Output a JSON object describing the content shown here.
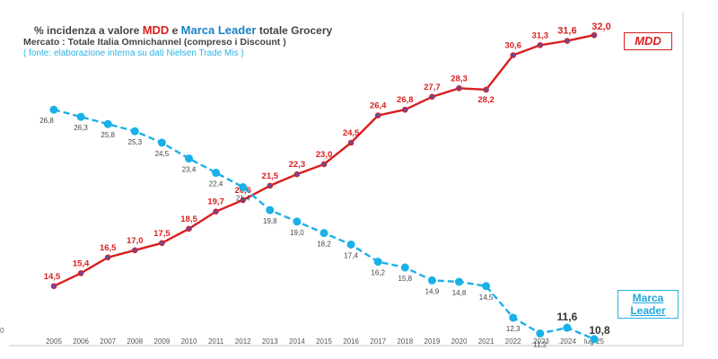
{
  "header": {
    "title_prefix": "% incidenza a valore ",
    "title_mdd": "MDD",
    "title_mid": " e ",
    "title_ml": "Marca Leader",
    "title_suffix": " totale Grocery",
    "subtitle": "Mercato : Totale Italia Omnichannel (compreso i Discount )",
    "source": "( fonte: elaborazione interna su dati  Nielsen Trade Mis )"
  },
  "legend": {
    "mdd": "MDD",
    "ml_line1": "Marca",
    "ml_line2": "Leader"
  },
  "y_zero_label": "0",
  "chart_data": {
    "type": "line",
    "categories": [
      "2005",
      "2006",
      "2007",
      "2008",
      "2009",
      "2010",
      "2011",
      "2012",
      "2013",
      "2014",
      "2015",
      "2016",
      "2017",
      "2018",
      "2019",
      "2020",
      "2021",
      "2022",
      ".2023",
      ".2024",
      "lug-25"
    ],
    "series": [
      {
        "name": "MDD",
        "color": "#d91f1f",
        "values": [
          14.5,
          15.4,
          16.5,
          17.0,
          17.5,
          18.5,
          19.7,
          20.5,
          21.5,
          22.3,
          23.0,
          24.5,
          26.4,
          26.8,
          27.7,
          28.3,
          28.2,
          30.6,
          31.3,
          31.6,
          32.0
        ],
        "labels": [
          "14,5",
          "15,4",
          "16,5",
          "17,0",
          "17,5",
          "18,5",
          "19,7",
          "20,5",
          "21,5",
          "22,3",
          "23,0",
          "24,5",
          "26,4",
          "26,8",
          "27,7",
          "28,3",
          "28,2",
          "30,6",
          "31,3",
          "31,6",
          "32,0"
        ]
      },
      {
        "name": "Marca Leader",
        "color": "#1ab0e8",
        "values": [
          26.8,
          26.3,
          25.8,
          25.3,
          24.5,
          23.4,
          22.4,
          21.4,
          19.8,
          19.0,
          18.2,
          17.4,
          16.2,
          15.8,
          14.9,
          14.8,
          14.5,
          12.3,
          11.2,
          11.6,
          10.8
        ],
        "labels": [
          "26,8",
          "26,3",
          "25,8",
          "25,3",
          "24,5",
          "23,4",
          "22,4",
          "21,4",
          "19,8",
          "19,0",
          "18,2",
          "17,4",
          "16,2",
          "15,8",
          "14,9",
          "14,8",
          "14,5",
          "12,3",
          "11,2",
          "11,6",
          "10,8"
        ]
      }
    ],
    "legend_position": "right",
    "grid": false
  }
}
